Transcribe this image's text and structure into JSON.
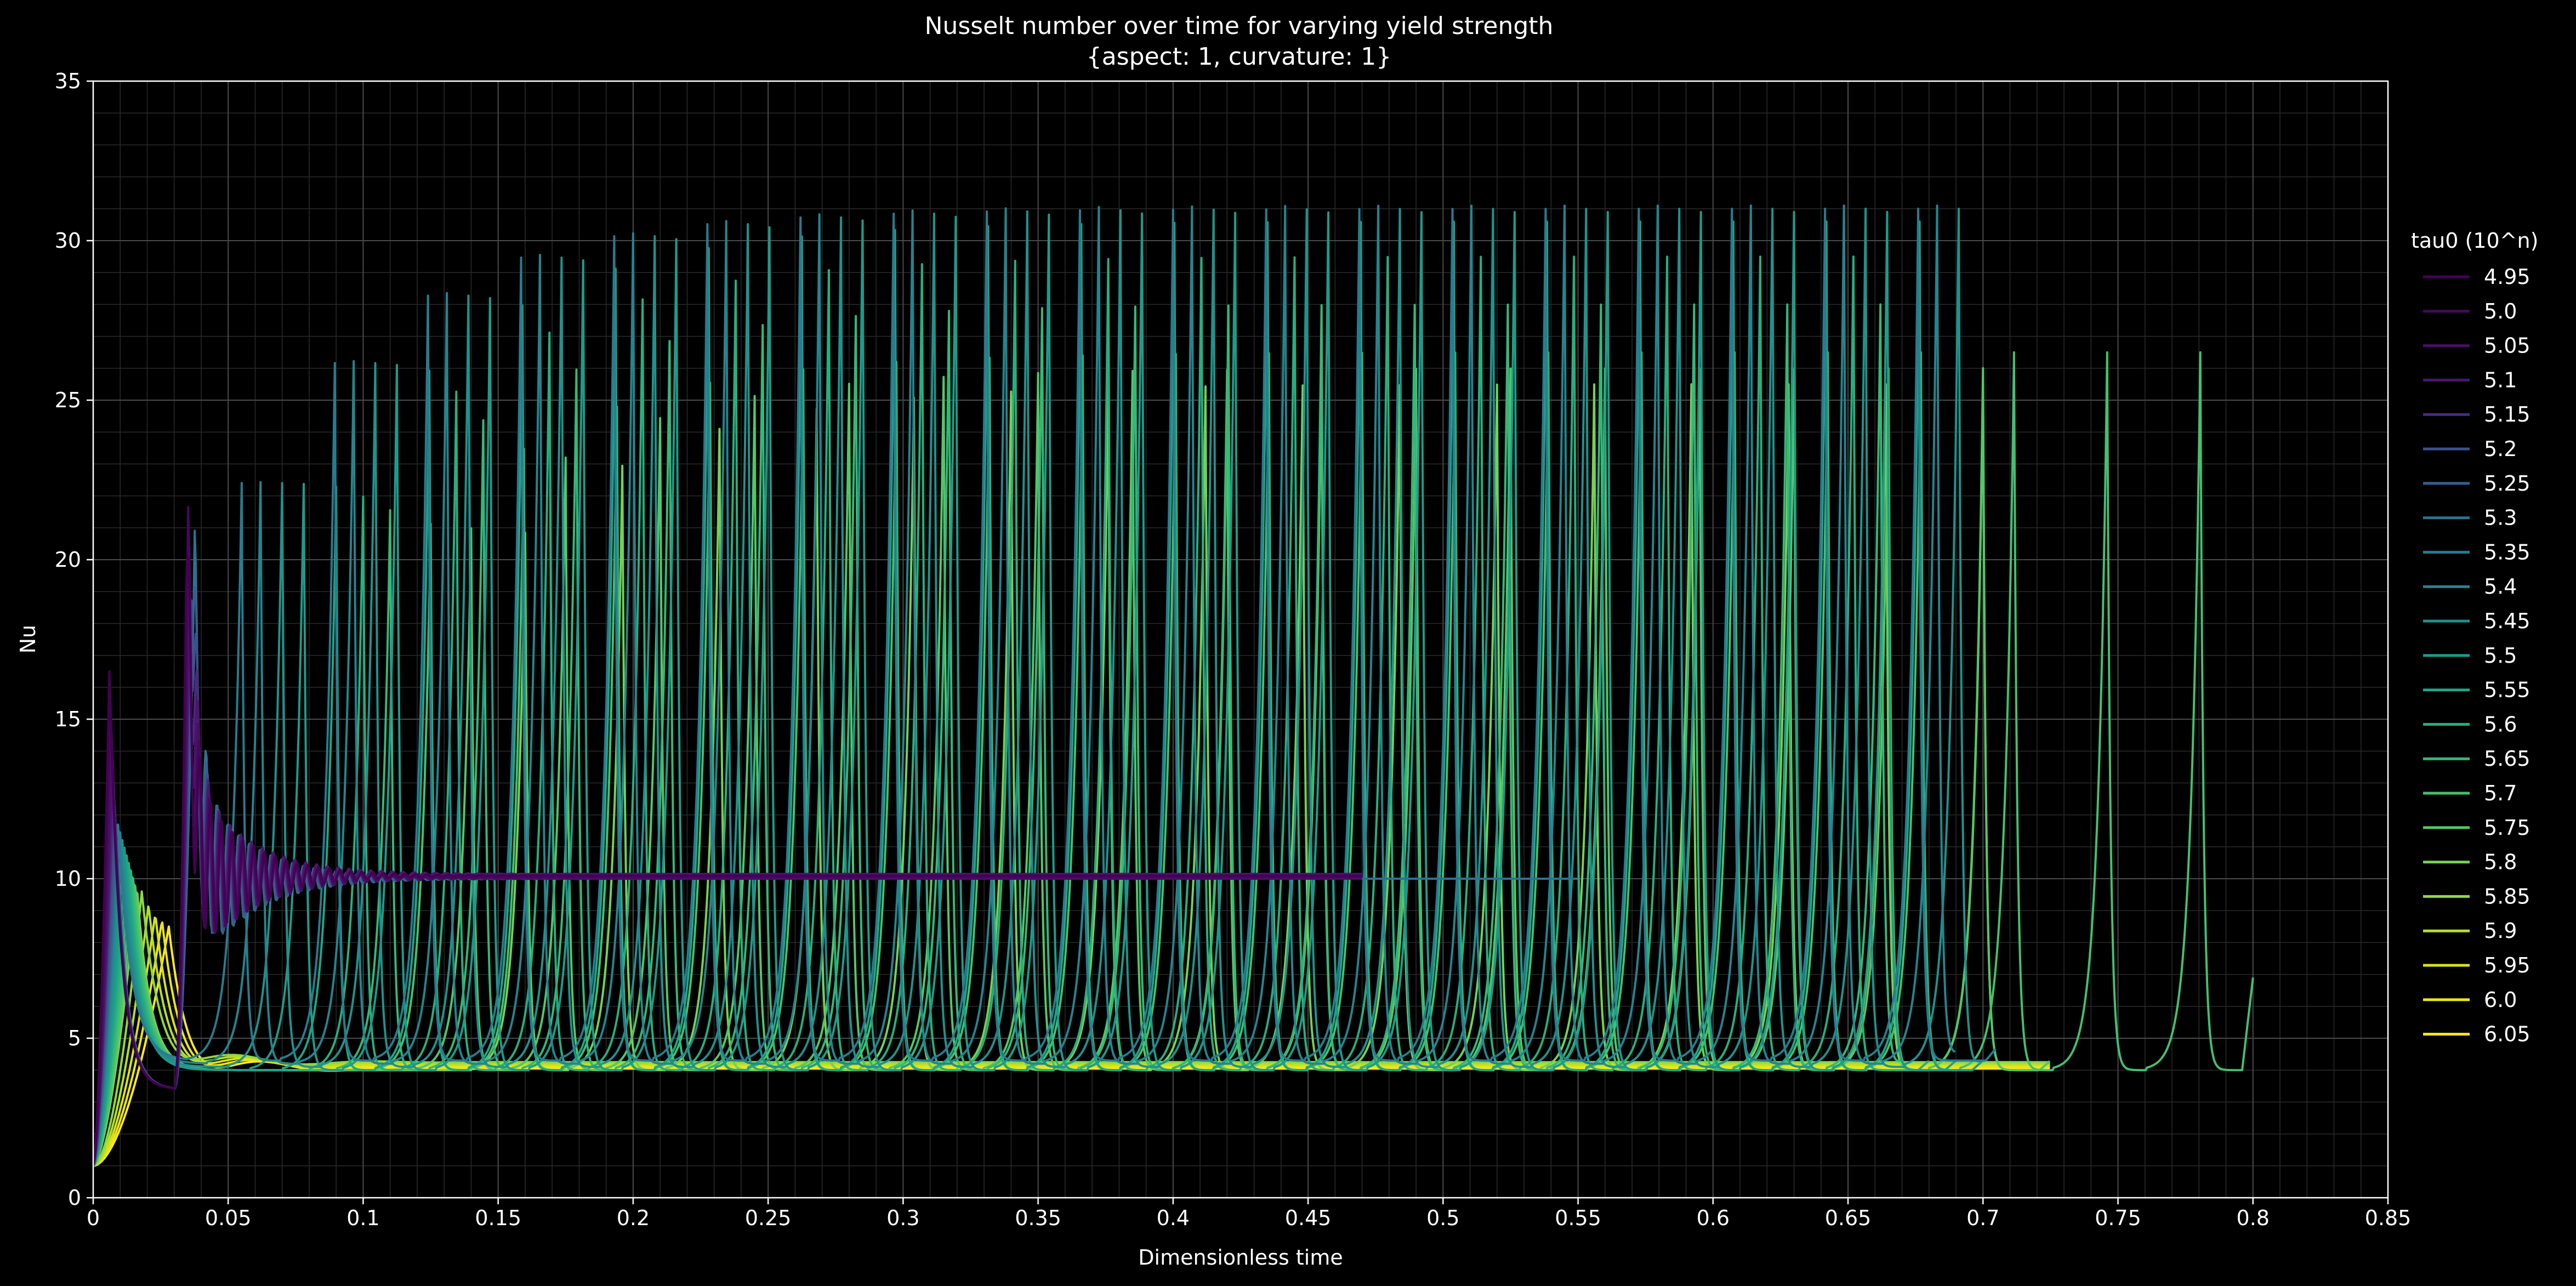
{
  "chart_data": {
    "type": "line",
    "title": "Nusselt number over time for varying yield strength",
    "subtitle": "{aspect: 1, curvature: 1}",
    "xlabel": "Dimensionless time",
    "ylabel": "Nu",
    "xlim": [
      0,
      0.85
    ],
    "ylim": [
      0,
      35
    ],
    "xticks": [
      "0",
      "0.05",
      "0.1",
      "0.15",
      "0.2",
      "0.25",
      "0.3",
      "0.35",
      "0.4",
      "0.45",
      "0.5",
      "0.55",
      "0.6",
      "0.65",
      "0.7",
      "0.75",
      "0.8",
      "0.85"
    ],
    "yticks": [
      "0",
      "5",
      "10",
      "15",
      "20",
      "25",
      "30",
      "35"
    ],
    "grid": true,
    "legend_position": "right",
    "legend_title": "tau0 (10^n)",
    "background": "#000000",
    "series": [
      {
        "name": "4.95",
        "color": "#440154",
        "behavior": "steady",
        "t_end": 0.47,
        "steady": 10.1,
        "initial_peak": 16.5,
        "second_peak": 19.7
      },
      {
        "name": "5.0",
        "color": "#46085c",
        "behavior": "steady",
        "t_end": 0.47,
        "steady": 10.05,
        "initial_peak": 15.5,
        "second_peak": 19.6
      },
      {
        "name": "5.05",
        "color": "#471063",
        "behavior": "steady",
        "t_end": 0.47,
        "steady": 10.0,
        "initial_peak": 14.6,
        "second_peak": 19.5
      },
      {
        "name": "5.1",
        "color": "#48186a",
        "behavior": "steady",
        "t_end": 0.47,
        "steady": 10.15,
        "initial_peak": 13.8,
        "second_peak": 19.4
      },
      {
        "name": "5.15",
        "color": "#472d7b",
        "behavior": "steady",
        "t_end": 0.47,
        "steady": 10.1,
        "initial_peak": 13.0,
        "second_peak": 19.3
      },
      {
        "name": "5.2",
        "color": "#3b528b",
        "behavior": "steady",
        "t_end": 0.47,
        "steady": 10.05,
        "initial_peak": 12.3,
        "second_peak": 19.2
      },
      {
        "name": "5.25",
        "color": "#355f8d",
        "behavior": "steady",
        "t_end": 0.47,
        "steady": 10.0,
        "initial_peak": 11.7,
        "second_peak": 19.1
      },
      {
        "name": "5.3",
        "color": "#2c728e",
        "behavior": "steady",
        "t_end": 0.55,
        "steady": 10.0,
        "initial_peak": 11.1,
        "second_peak": 19.0
      },
      {
        "name": "5.35",
        "color": "#297b8e",
        "behavior": "oscillating",
        "t_start": 0.055,
        "period": 0.0345,
        "t_end": 0.705,
        "max_peak": 31.0,
        "trough": 4.3,
        "final": 4.7
      },
      {
        "name": "5.4",
        "color": "#25848e",
        "behavior": "oscillating",
        "t_start": 0.062,
        "period": 0.0345,
        "t_end": 0.69,
        "max_peak": 31.1,
        "trough": 4.2,
        "final": 4.5
      },
      {
        "name": "5.45",
        "color": "#21918c",
        "behavior": "oscillating",
        "t_start": 0.07,
        "period": 0.0345,
        "t_end": 0.7,
        "max_peak": 31.0,
        "trough": 4.1,
        "final": 4.3
      },
      {
        "name": "5.5",
        "color": "#1f9a8a",
        "behavior": "oscillating",
        "t_start": 0.078,
        "period": 0.0345,
        "t_end": 0.7,
        "max_peak": 30.9,
        "trough": 4.0,
        "final": 4.3
      },
      {
        "name": "5.55",
        "color": "#20a486",
        "behavior": "oscillating",
        "t_start": 0.09,
        "period": 0.0345,
        "t_end": 0.69,
        "max_peak": 30.6,
        "trough": 4.0,
        "final": 4.3
      },
      {
        "name": "5.6",
        "color": "#28ae80",
        "behavior": "oscillating",
        "t_start": 0.1,
        "period": 0.0345,
        "t_end": 0.68,
        "max_peak": 29.5,
        "trough": 4.0,
        "final": 4.3
      },
      {
        "name": "5.65",
        "color": "#35b779",
        "behavior": "oscillating",
        "t_start": 0.11,
        "period": 0.0345,
        "t_end": 0.67,
        "max_peak": 28.0,
        "trough": 4.0,
        "final": 4.3
      },
      {
        "name": "5.7",
        "color": "#44bf70",
        "behavior": "oscillating",
        "t_start": 0.125,
        "period": 0.0345,
        "t_end": 0.8,
        "max_peak": 26.5,
        "trough": 4.0,
        "final": 6.9
      },
      {
        "name": "5.75",
        "color": "#54c568",
        "behavior": "oscillating",
        "t_start": 0.14,
        "period": 0.035,
        "t_end": 0.725,
        "max_peak": 26.0,
        "trough": 4.0,
        "final": 4.3
      },
      {
        "name": "5.8",
        "color": "#75d054",
        "behavior": "oscillating",
        "t_start": 0.16,
        "period": 0.036,
        "t_end": 0.725,
        "max_peak": 25.5,
        "trough": 4.0,
        "final": 4.3
      },
      {
        "name": "5.85",
        "color": "#8fd744",
        "behavior": "steady_low",
        "t_end": 0.725,
        "steady": 4.25,
        "initial_peak": 9.6
      },
      {
        "name": "5.9",
        "color": "#b5de2b",
        "behavior": "steady_low",
        "t_end": 0.725,
        "steady": 4.2,
        "initial_peak": 9.2
      },
      {
        "name": "5.95",
        "color": "#d8e219",
        "behavior": "steady_low",
        "t_end": 0.725,
        "steady": 4.15,
        "initial_peak": 8.9
      },
      {
        "name": "6.0",
        "color": "#eae51a",
        "behavior": "steady_low",
        "t_end": 0.725,
        "steady": 4.1,
        "initial_peak": 8.7
      },
      {
        "name": "6.05",
        "color": "#fde725",
        "behavior": "steady_low",
        "t_end": 0.725,
        "steady": 4.05,
        "initial_peak": 8.5
      }
    ]
  }
}
